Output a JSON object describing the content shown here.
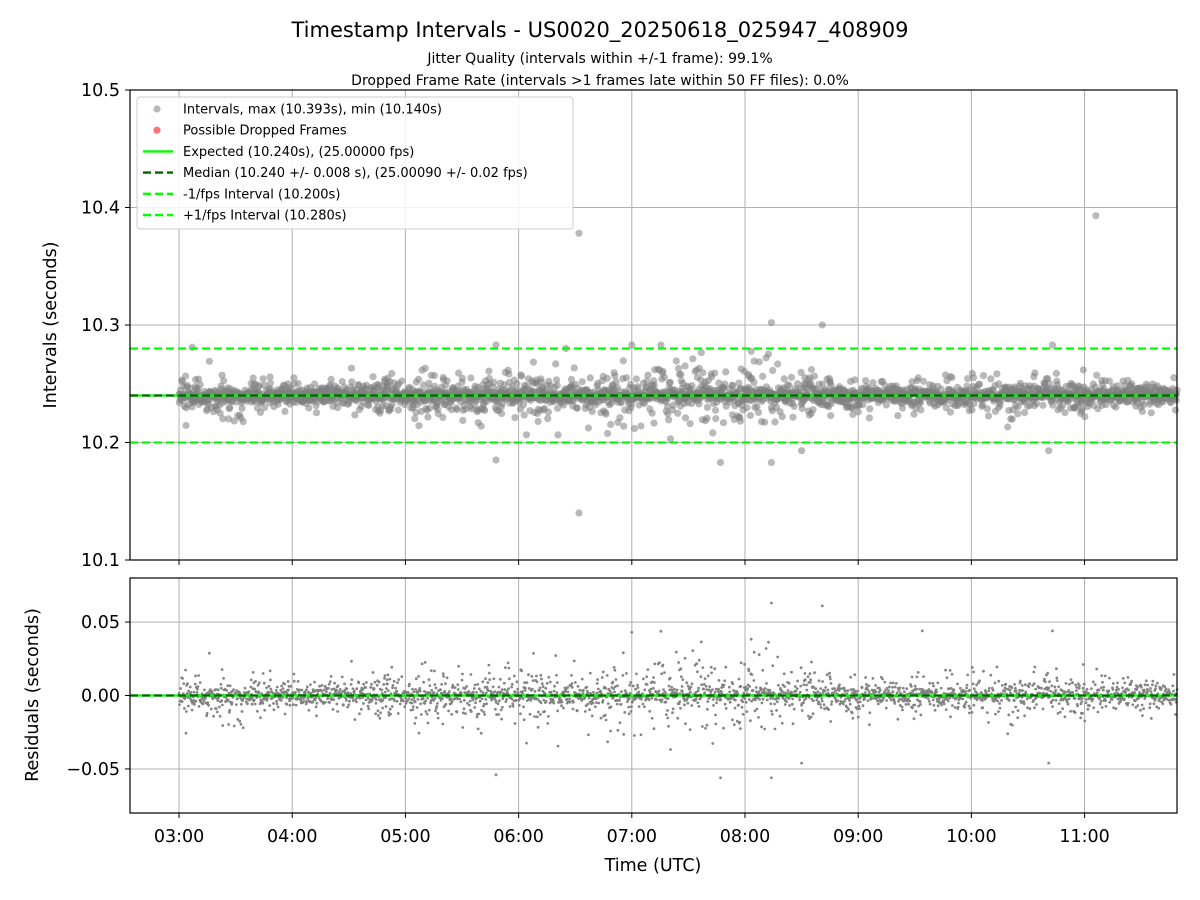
{
  "chart_data": {
    "type": "scatter",
    "title": "Timestamp Intervals - US0020_20250618_025947_408909",
    "subtitles": [
      "Jitter Quality (intervals within +/-1 frame): 99.1%",
      "Dropped Frame Rate (intervals >1 frames late within 50 FF files): 0.0%"
    ],
    "xlabel": "Time (UTC)",
    "x_range": [
      "02:34",
      "11:49"
    ],
    "x_ticks": [
      "03:00",
      "04:00",
      "05:00",
      "06:00",
      "07:00",
      "08:00",
      "09:00",
      "10:00",
      "11:00"
    ],
    "grid": true,
    "panels": [
      {
        "name": "intervals",
        "ylabel": "Intervals (seconds)",
        "ylim": [
          10.1,
          10.5
        ],
        "y_ticks": [
          "10.1",
          "10.2",
          "10.3",
          "10.4",
          "10.5"
        ],
        "legend_position": "upper-left",
        "legend": [
          {
            "label": "Intervals, max (10.393s), min (10.140s)",
            "kind": "marker",
            "color": "#7f7f7f"
          },
          {
            "label": "Possible Dropped Frames",
            "kind": "marker",
            "color": "#ff0000"
          },
          {
            "label": "Expected (10.240s), (25.00000 fps)",
            "kind": "solid",
            "color": "#00ff00"
          },
          {
            "label": "Median (10.240 +/- 0.008 s), (25.00090 +/- 0.02 fps)",
            "kind": "dashed",
            "color": "#006400"
          },
          {
            "label": "-1/fps Interval (10.200s)",
            "kind": "dashed",
            "color": "#00ff00"
          },
          {
            "label": "+1/fps Interval (10.280s)",
            "kind": "dashed",
            "color": "#00ff00"
          }
        ],
        "lines": [
          {
            "name": "expected",
            "y": 10.24,
            "style": "solid",
            "color": "#00ff00"
          },
          {
            "name": "median",
            "y": 10.24,
            "style": "dashed",
            "color": "#006400"
          },
          {
            "name": "minus-1fps",
            "y": 10.2,
            "style": "dashed",
            "color": "#00ff00"
          },
          {
            "name": "plus-1fps",
            "y": 10.28,
            "style": "dashed",
            "color": "#00ff00"
          }
        ],
        "series": [
          {
            "name": "Intervals",
            "color": "#7f7f7f",
            "points": [
              {
                "x": "06:32",
                "y": 10.378
              },
              {
                "x": "06:32",
                "y": 10.14
              },
              {
                "x": "11:06",
                "y": 10.393
              },
              {
                "x": "08:14",
                "y": 10.302
              },
              {
                "x": "08:41",
                "y": 10.3
              },
              {
                "x": "05:48",
                "y": 10.185
              },
              {
                "x": "07:47",
                "y": 10.183
              },
              {
                "x": "08:14",
                "y": 10.183
              },
              {
                "x": "10:41",
                "y": 10.193
              },
              {
                "x": "08:30",
                "y": 10.193
              },
              {
                "x": "07:00",
                "y": 10.283
              },
              {
                "x": "10:43",
                "y": 10.283
              },
              {
                "x": "05:48",
                "y": 10.283
              },
              {
                "x": "06:25",
                "y": 10.28
              },
              {
                "x": "03:07",
                "y": 10.281
              }
            ]
          }
        ]
      },
      {
        "name": "residuals",
        "ylabel": "Residuals (seconds)",
        "ylim": [
          -0.08,
          0.08
        ],
        "y_ticks": [
          "−0.05",
          "0.00",
          "0.05"
        ],
        "lines": [
          {
            "name": "zero",
            "y": 0,
            "style": "solid",
            "color": "#00ff00"
          },
          {
            "name": "median-residual",
            "y": 0,
            "style": "dashed",
            "color": "#006400"
          }
        ],
        "series": [
          {
            "name": "Residuals",
            "color": "#7f7f7f",
            "points": [
              {
                "x": "08:14",
                "y": 0.063
              },
              {
                "x": "08:41",
                "y": 0.061
              },
              {
                "x": "05:48",
                "y": -0.054
              },
              {
                "x": "07:47",
                "y": -0.056
              },
              {
                "x": "08:14",
                "y": -0.056
              },
              {
                "x": "10:41",
                "y": -0.046
              },
              {
                "x": "08:30",
                "y": -0.046
              },
              {
                "x": "07:00",
                "y": 0.043
              },
              {
                "x": "10:43",
                "y": 0.044
              },
              {
                "x": "09:34",
                "y": 0.044
              }
            ]
          }
        ]
      }
    ]
  }
}
